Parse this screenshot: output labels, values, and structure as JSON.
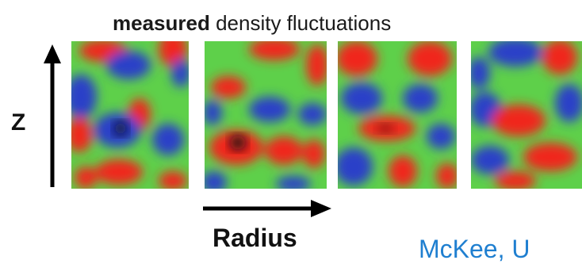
{
  "title": {
    "bold": "measured",
    "rest": " density fluctuations"
  },
  "axes": {
    "vertical_label": "Z",
    "horizontal_label": "Radius"
  },
  "credit": "McKee, U",
  "colors": {
    "background_green": "#5ed04a",
    "blob_red": "#f0281e",
    "blob_blue": "#2a3fc8",
    "blob_black": "#0a0a14",
    "credit_blue": "#1f7fd0"
  },
  "panels": [
    {
      "name": "panel-1"
    },
    {
      "name": "panel-2"
    },
    {
      "name": "panel-3"
    },
    {
      "name": "panel-4"
    }
  ]
}
